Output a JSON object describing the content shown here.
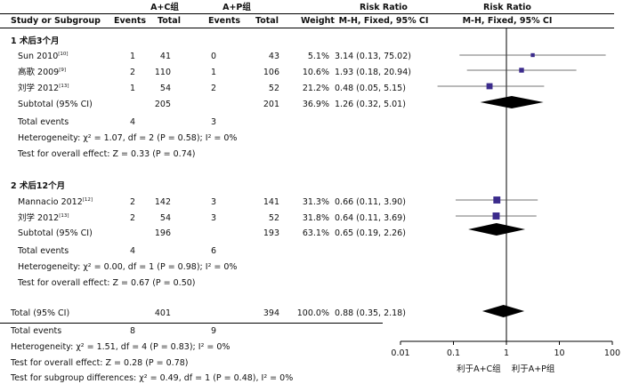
{
  "header": {
    "group1": "A+C组",
    "group2": "A+P组",
    "study_col": "Study or Subgroup",
    "events": "Events",
    "total": "Total",
    "weight": "Weight",
    "rr_title": "Risk Ratio",
    "rr_method": "M-H, Fixed, 95% CI",
    "plot_title": "Risk Ratio",
    "plot_method": "M-H, Fixed, 95% CI"
  },
  "subgroups": [
    {
      "title": "1 术后3个月",
      "studies": [
        {
          "name": "Sun 2010",
          "ref": "[10]",
          "e1": "1",
          "t1": "41",
          "e2": "0",
          "t2": "43",
          "weight": "5.1%",
          "ci": "3.14 (0.13, 75.02)"
        },
        {
          "name": "高歌 2009",
          "ref": "[9]",
          "e1": "2",
          "t1": "110",
          "e2": "1",
          "t2": "106",
          "weight": "10.6%",
          "ci": "1.93 (0.18, 20.94)"
        },
        {
          "name": "刘学 2012",
          "ref": "[13]",
          "e1": "1",
          "t1": "54",
          "e2": "2",
          "t2": "52",
          "weight": "21.2%",
          "ci": "0.48 (0.05, 5.15)"
        }
      ],
      "subtotal": {
        "label": "Subtotal (95% CI)",
        "t1": "205",
        "t2": "201",
        "weight": "36.9%",
        "ci": "1.26 (0.32, 5.01)"
      },
      "total_events": {
        "label": "Total events",
        "e1": "4",
        "e2": "3"
      },
      "heterogeneity": "Heterogeneity: χ² = 1.07, df = 2 (P = 0.58); I² = 0%",
      "overall": "Test for overall effect: Z = 0.33 (P = 0.74)"
    },
    {
      "title": "2 术后12个月",
      "studies": [
        {
          "name": "Mannacio 2012",
          "ref": "[12]",
          "e1": "2",
          "t1": "142",
          "e2": "3",
          "t2": "141",
          "weight": "31.3%",
          "ci": "0.66 (0.11, 3.90)"
        },
        {
          "name": "刘学 2012",
          "ref": "[13]",
          "e1": "2",
          "t1": "54",
          "e2": "3",
          "t2": "52",
          "weight": "31.8%",
          "ci": "0.64 (0.11, 3.69)"
        }
      ],
      "subtotal": {
        "label": "Subtotal (95% CI)",
        "t1": "196",
        "t2": "193",
        "weight": "63.1%",
        "ci": "0.65 (0.19, 2.26)"
      },
      "total_events": {
        "label": "Total events",
        "e1": "4",
        "e2": "6"
      },
      "heterogeneity": "Heterogeneity: χ² = 0.00, df = 1 (P = 0.98); I² = 0%",
      "overall": "Test for overall effect: Z = 0.67 (P = 0.50)"
    }
  ],
  "total": {
    "label": "Total (95% CI)",
    "t1": "401",
    "t2": "394",
    "weight": "100.0%",
    "ci": "0.88 (0.35, 2.18)"
  },
  "total_events": {
    "label": "Total events",
    "e1": "8",
    "e2": "9"
  },
  "footer": {
    "heterogeneity": "Heterogeneity: χ² = 1.51, df = 4 (P = 0.83); I² = 0%",
    "overall": "Test for overall effect: Z = 0.28 (P = 0.78)",
    "subgroup": "Test for subgroup differences: χ² = 0.49, df = 1 (P = 0.48), I² = 0%"
  },
  "axis": {
    "ticks": [
      "0.01",
      "0.1",
      "1",
      "10",
      "100"
    ],
    "favours_left": "利于A+C组",
    "favours_right": "利于A+P组"
  },
  "chart_data": {
    "type": "forest",
    "scale": "log",
    "xlim": [
      0.01,
      100
    ],
    "reference_line": 1,
    "colors": {
      "marker": "#3b2b8c",
      "diamond": "#000000"
    },
    "studies": [
      {
        "name": "Sun 2010",
        "rr": 3.14,
        "lo": 0.13,
        "hi": 75.02,
        "weight": 5.1
      },
      {
        "name": "高歌 2009",
        "rr": 1.93,
        "lo": 0.18,
        "hi": 20.94,
        "weight": 10.6
      },
      {
        "name": "刘学 2012",
        "rr": 0.48,
        "lo": 0.05,
        "hi": 5.15,
        "weight": 21.2
      },
      {
        "name": "Mannacio 2012",
        "rr": 0.66,
        "lo": 0.11,
        "hi": 3.9,
        "weight": 31.3
      },
      {
        "name": "刘学 2012",
        "rr": 0.64,
        "lo": 0.11,
        "hi": 3.69,
        "weight": 31.8
      }
    ],
    "diamonds": [
      {
        "name": "Subtotal 1",
        "rr": 1.26,
        "lo": 0.32,
        "hi": 5.01
      },
      {
        "name": "Subtotal 2",
        "rr": 0.65,
        "lo": 0.19,
        "hi": 2.26
      },
      {
        "name": "Total",
        "rr": 0.88,
        "lo": 0.35,
        "hi": 2.18
      }
    ]
  }
}
